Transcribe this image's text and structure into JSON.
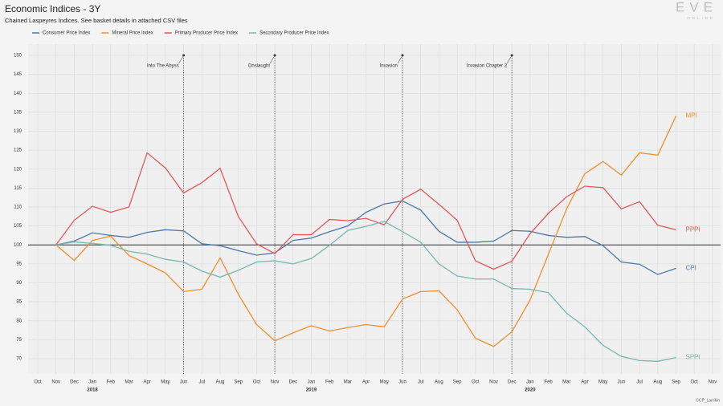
{
  "chart_data": {
    "type": "line",
    "title": "Economic Indices - 3Y",
    "subtitle": "Chained Laspeyres Indices. See basket details in attached CSV files",
    "logo": "EVE",
    "logo_sub": "ONLINE",
    "credit": "CCP_Larrikin",
    "categories": [
      "Oct",
      "Nov",
      "Dec",
      "Jan",
      "Feb",
      "Mar",
      "Apr",
      "May",
      "Jun",
      "Jul",
      "Aug",
      "Sep",
      "Oct",
      "Nov",
      "Dec",
      "Jan",
      "Feb",
      "Mar",
      "Apr",
      "May",
      "Jun",
      "Jul",
      "Aug",
      "Sep",
      "Oct",
      "Nov",
      "Dec",
      "Jan",
      "Feb",
      "Mar",
      "Apr",
      "May",
      "Jun",
      "Jul",
      "Aug",
      "Sep",
      "Oct",
      "Nov"
    ],
    "year_labels": [
      "2018",
      "2019",
      "2020"
    ],
    "ylim": [
      66,
      153
    ],
    "yticks": [
      70,
      75,
      80,
      85,
      90,
      95,
      100,
      105,
      110,
      115,
      120,
      125,
      130,
      135,
      140,
      145,
      150
    ],
    "reference_line": 100,
    "grid": true,
    "legend": "top-left",
    "series": [
      {
        "name": "Consumer Price Index",
        "end_label": "CPI",
        "color": "#4a78a8",
        "values": [
          null,
          100,
          101,
          103.2,
          102.5,
          102,
          103.3,
          104,
          103.7,
          100.3,
          99.8,
          98.5,
          97.3,
          97.9,
          101.2,
          101.8,
          103.5,
          105,
          108.6,
          110.8,
          111.6,
          109.2,
          103.6,
          100.7,
          100.7,
          101,
          103.8,
          103.6,
          102.5,
          102,
          102.2,
          99.8,
          95.5,
          94.9,
          92.2,
          93.8,
          null,
          null
        ]
      },
      {
        "name": "Mineral Price Index",
        "end_label": "MPI",
        "color": "#f28e2b",
        "values": [
          null,
          100,
          95.9,
          101.2,
          102.3,
          97.2,
          95,
          92.6,
          87.7,
          88.3,
          96.6,
          87,
          79,
          74.7,
          76.8,
          78.7,
          77.3,
          78.2,
          79,
          78.4,
          85.7,
          87.7,
          87.9,
          82.9,
          75.4,
          73.2,
          77.1,
          85.5,
          97.5,
          109.5,
          118.8,
          122,
          118.4,
          124.3,
          123.7,
          134,
          null,
          null
        ]
      },
      {
        "name": "Primary Producer Price Index",
        "end_label": "PPPI",
        "color": "#e15759",
        "values": [
          null,
          100,
          106.5,
          110.2,
          108.6,
          110,
          124.3,
          120.3,
          113.7,
          116.4,
          120.2,
          107.5,
          100.3,
          97.7,
          102.7,
          102.7,
          106.7,
          106.4,
          107,
          105.3,
          112,
          114.7,
          110.7,
          106.5,
          95.8,
          93.6,
          95.7,
          103,
          108.3,
          112.7,
          115.5,
          115.1,
          109.5,
          111.4,
          105.2,
          104,
          null,
          null
        ]
      },
      {
        "name": "Secondary Producer Price Index",
        "end_label": "SPPI",
        "color": "#76b7b2",
        "values": [
          null,
          100,
          100.8,
          100.4,
          99.9,
          98.3,
          97.6,
          96.2,
          95.5,
          93.1,
          91.5,
          93.3,
          95.5,
          95.8,
          95,
          96.4,
          99.9,
          103.8,
          104.9,
          106.2,
          103.5,
          100.7,
          95,
          91.8,
          91,
          91,
          88.5,
          88.3,
          87.4,
          82,
          78.4,
          73.5,
          70.6,
          69.5,
          69.3,
          70.3,
          null,
          null
        ]
      }
    ],
    "annotations": [
      {
        "text": "Into The Abyss",
        "x_index": 8,
        "y": 150
      },
      {
        "text": "Onslaught",
        "x_index": 13,
        "y": 150
      },
      {
        "text": "Invasion",
        "x_index": 20,
        "y": 150
      },
      {
        "text": "Invasion Chapter 2",
        "x_index": 26,
        "y": 150
      }
    ]
  }
}
